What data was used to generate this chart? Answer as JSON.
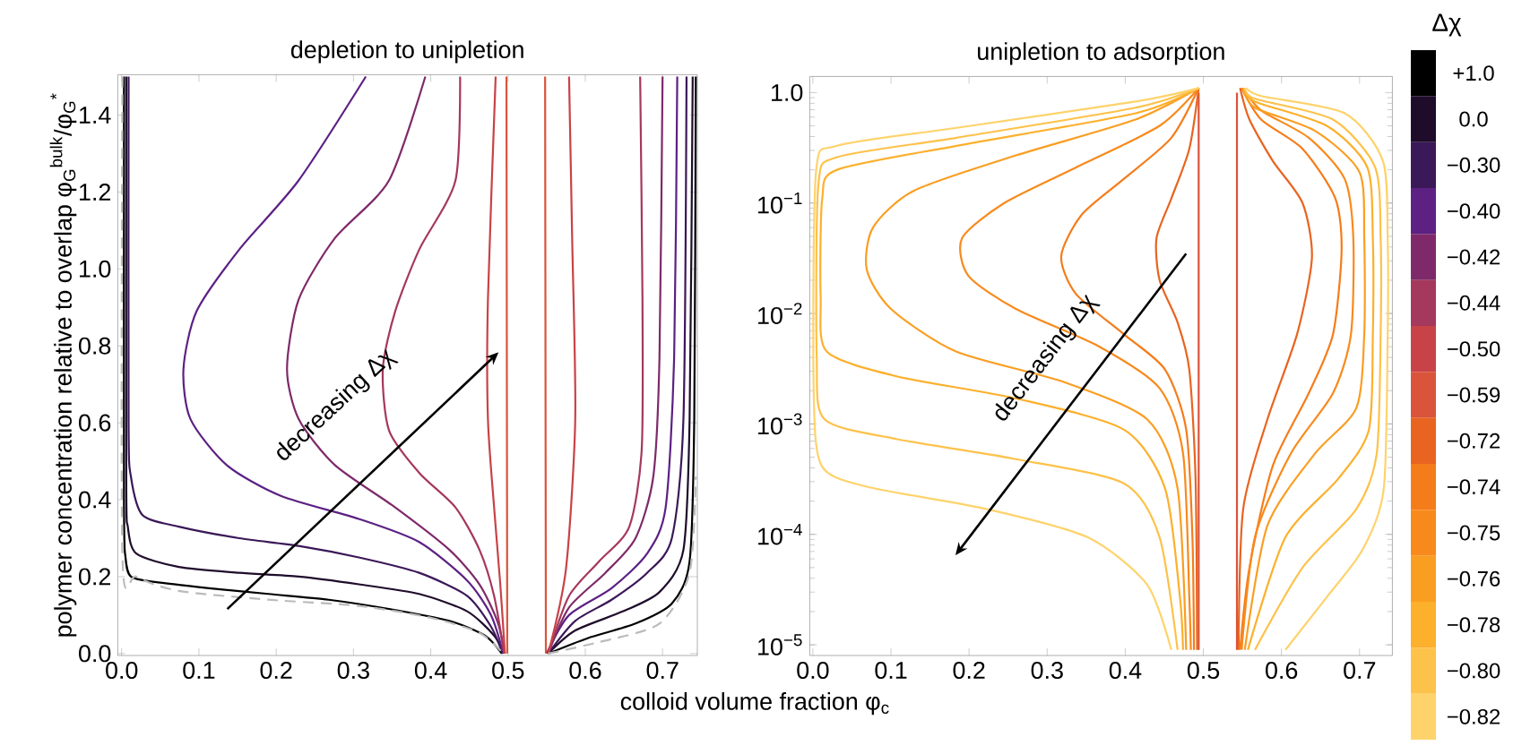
{
  "chart_data": [
    {
      "type": "line",
      "title": "depletion to unipletion",
      "xlabel": "colloid volume fraction φ$_{c}$",
      "ylabel": "polymer concentration relative to overlap φ$_{G}$$^{bulk}$/φ$_{G}$$^{*}$",
      "xlim": [
        -0.005,
        0.745
      ],
      "ylim": [
        -0.005,
        1.505
      ],
      "xticks": [
        {
          "value": 0,
          "label": "0.0"
        },
        {
          "value": 0.1,
          "label": "0.1"
        },
        {
          "value": 0.2,
          "label": "0.2"
        },
        {
          "value": 0.3,
          "label": "0.3"
        },
        {
          "value": 0.4,
          "label": "0.4"
        },
        {
          "value": 0.5,
          "label": "0.5"
        },
        {
          "value": 0.6,
          "label": "0.6"
        },
        {
          "value": 0.7,
          "label": "0.7"
        }
      ],
      "yticks": [
        {
          "value": 0,
          "label": "0.0"
        },
        {
          "value": 0.2,
          "label": "0.2"
        },
        {
          "value": 0.4,
          "label": "0.4"
        },
        {
          "value": 0.6,
          "label": "0.6"
        },
        {
          "value": 0.8,
          "label": "0.8"
        },
        {
          "value": 1,
          "label": "1.0"
        },
        {
          "value": 1.2,
          "label": "1.2"
        },
        {
          "value": 1.4,
          "label": "1.4"
        }
      ],
      "legend": "right",
      "annotations": [
        "decreasing Δχ"
      ],
      "series": [
        {
          "name": "+1.0",
          "color": "#000000",
          "x": [
            0.003,
            0.003,
            0.005,
            0.012,
            0.043,
            0.113,
            0.19,
            0.268,
            0.346,
            0.424,
            0.47,
            0.492,
            null,
            0.552,
            0.603,
            0.665,
            0.712,
            0.735,
            0.741,
            0.743
          ],
          "values": [
            1.5,
            0.4,
            0.25,
            0.2,
            0.186,
            0.17,
            0.155,
            0.14,
            0.116,
            0.085,
            0.047,
            0,
            null,
            0,
            0.04,
            0.078,
            0.13,
            0.24,
            0.61,
            1.5
          ]
        },
        {
          "name": "0.0",
          "color": "#1f0c2a",
          "x": [
            0.006,
            0.006,
            0.008,
            0.019,
            0.074,
            0.152,
            0.229,
            0.307,
            0.385,
            0.447,
            0.482,
            0.494,
            null,
            0.552,
            0.587,
            0.649,
            0.696,
            0.727,
            0.735,
            0.739
          ],
          "values": [
            1.5,
            0.45,
            0.33,
            0.26,
            0.225,
            0.21,
            0.2,
            0.18,
            0.155,
            0.11,
            0.047,
            0,
            null,
            0,
            0.06,
            0.11,
            0.16,
            0.27,
            0.61,
            1.5
          ]
        },
        {
          "name": "−0.30",
          "color": "#3b1858",
          "x": [
            0.009,
            0.009,
            0.012,
            0.027,
            0.074,
            0.152,
            0.229,
            0.307,
            0.385,
            0.447,
            0.478,
            0.493,
            null,
            0.552,
            0.587,
            0.634,
            0.68,
            0.712,
            0.727,
            0.731
          ],
          "values": [
            1.5,
            0.6,
            0.46,
            0.36,
            0.33,
            0.3,
            0.28,
            0.25,
            0.21,
            0.15,
            0.07,
            0,
            null,
            0,
            0.085,
            0.14,
            0.21,
            0.3,
            0.61,
            1.5
          ]
        },
        {
          "name": "−0.40",
          "color": "#5c2183",
          "x": [
            0.316,
            0.229,
            0.152,
            0.097,
            0.08,
            0.089,
            0.136,
            0.206,
            0.307,
            0.385,
            0.447,
            0.478,
            0.494,
            null,
            0.55,
            0.579,
            0.634,
            0.68,
            0.704,
            0.715,
            0.719
          ],
          "values": [
            1.5,
            1.23,
            1.05,
            0.89,
            0.74,
            0.61,
            0.49,
            0.41,
            0.35,
            0.29,
            0.19,
            0.1,
            0,
            null,
            0,
            0.1,
            0.17,
            0.26,
            0.38,
            0.77,
            1.5
          ]
        },
        {
          "name": "−0.42",
          "color": "#7e2a6a",
          "x": [
            0.393,
            0.346,
            0.276,
            0.229,
            0.214,
            0.229,
            0.276,
            0.354,
            0.424,
            0.463,
            0.486,
            0.496,
            null,
            0.552,
            0.579,
            0.626,
            0.665,
            0.688,
            0.696,
            0.7
          ],
          "values": [
            1.5,
            1.23,
            1.08,
            0.92,
            0.74,
            0.61,
            0.49,
            0.38,
            0.27,
            0.18,
            0.085,
            0,
            null,
            0,
            0.12,
            0.21,
            0.3,
            0.46,
            0.77,
            1.5
          ]
        },
        {
          "name": "−0.44",
          "color": "#a5385d",
          "x": [
            0.438,
            0.432,
            0.385,
            0.354,
            0.338,
            0.346,
            0.385,
            0.432,
            0.463,
            0.482,
            0.495,
            null,
            0.552,
            0.579,
            0.618,
            0.657,
            0.673,
            0.674,
            0.671
          ],
          "values": [
            1.5,
            1.23,
            1.05,
            0.89,
            0.74,
            0.58,
            0.47,
            0.38,
            0.27,
            0.15,
            0,
            null,
            0,
            0.15,
            0.24,
            0.33,
            0.53,
            0.92,
            1.5
          ]
        },
        {
          "name": "−0.50",
          "color": "#c84347",
          "x": [
            0.484,
            0.474,
            0.474,
            0.482,
            0.49,
            0.496,
            null,
            0.552,
            0.575,
            0.587,
            0.583,
            0.579
          ],
          "values": [
            1.5,
            0.92,
            0.61,
            0.38,
            0.18,
            0,
            null,
            0,
            0.22,
            0.61,
            1.08,
            1.5
          ]
        },
        {
          "name": "−0.59",
          "color": "#d9543a",
          "x": [
            0.498,
            0.499,
            null,
            0.549,
            0.548
          ],
          "values": [
            1.5,
            0,
            null,
            0,
            1.5
          ]
        },
        {
          "color": "#bbbbbb",
          "line_style": "dashed",
          "x": [
            0.001,
            0.001,
            0.019,
            0.074,
            0.19,
            0.307,
            0.4,
            0.463,
            0.494,
            null,
            0.552,
            0.618,
            0.696,
            0.735,
            0.743
          ],
          "values": [
            1.5,
            0.256,
            0.2,
            0.163,
            0.14,
            0.124,
            0.093,
            0.054,
            0,
            null,
            0,
            0.03,
            0.078,
            0.21,
            0.46
          ]
        }
      ]
    },
    {
      "type": "line",
      "title": "unipletion to adsorption",
      "log": "y",
      "xlim": [
        -0.004,
        0.742
      ],
      "ylim": [
        8e-06,
        1.4
      ],
      "xticks": [
        {
          "value": 0,
          "label": "0.0"
        },
        {
          "value": 0.1,
          "label": "0.1"
        },
        {
          "value": 0.2,
          "label": "0.2"
        },
        {
          "value": 0.3,
          "label": "0.3"
        },
        {
          "value": 0.4,
          "label": "0.4"
        },
        {
          "value": 0.5,
          "label": "0.5"
        },
        {
          "value": 0.6,
          "label": "0.6"
        },
        {
          "value": 0.7,
          "label": "0.7"
        }
      ],
      "yticks": [
        {
          "value": 1e-05,
          "label": "10$^{−5}$"
        },
        {
          "value": 0.0001,
          "label": "10$^{−4}$"
        },
        {
          "value": 0.001,
          "label": "10$^{−3}$"
        },
        {
          "value": 0.01,
          "label": "10$^{−2}$"
        },
        {
          "value": 0.1,
          "label": "10$^{−1}$"
        },
        {
          "value": 1,
          "label": "1.0"
        }
      ],
      "legend": "right",
      "legend_title": "Δχ",
      "annotations": [
        "decreasing Δχ"
      ],
      "series": [
        {
          "color": "#d9543a",
          "x": [
            0.494,
            0.494,
            null,
            0.543,
            0.543
          ],
          "values": [
            1.0,
            9e-06,
            null,
            9e-06,
            1.0
          ]
        },
        {
          "name": "−0.72",
          "color": "#e86420",
          "x": [
            0.494,
            0.482,
            0.459,
            0.44,
            0.444,
            0.467,
            0.482,
            0.49,
            0.492,
            null,
            0.545,
            0.551,
            0.582,
            0.62,
            0.639,
            0.627,
            0.589,
            0.559,
            0.547
          ],
          "values": [
            1.1,
            0.31,
            0.11,
            0.048,
            0.02,
            0.0083,
            0.0031,
            0.00032,
            9e-06,
            null,
            9e-06,
            0.00017,
            0.0011,
            0.0065,
            0.032,
            0.1,
            0.24,
            0.57,
            1.1
          ]
        },
        {
          "name": "−0.74",
          "color": "#f57c1a",
          "x": [
            0.494,
            0.459,
            0.398,
            0.344,
            0.318,
            0.337,
            0.398,
            0.451,
            0.478,
            0.486,
            0.488,
            null,
            0.547,
            0.559,
            0.589,
            0.635,
            0.666,
            0.677,
            0.669,
            0.627,
            0.574,
            0.549
          ],
          "values": [
            1.1,
            0.39,
            0.165,
            0.078,
            0.033,
            0.015,
            0.0065,
            0.0031,
            0.00089,
            9.4e-05,
            9e-06,
            null,
            9e-06,
            5e-05,
            0.00042,
            0.0019,
            0.0065,
            0.037,
            0.11,
            0.31,
            0.57,
            1.1
          ]
        },
        {
          "name": "−0.75",
          "color": "#f88a1c",
          "x": [
            0.494,
            0.444,
            0.337,
            0.245,
            0.191,
            0.199,
            0.26,
            0.367,
            0.444,
            0.474,
            0.482,
            0.484,
            null,
            0.549,
            0.566,
            0.612,
            0.666,
            0.689,
            0.692,
            0.681,
            0.635,
            0.574,
            0.551
          ],
          "values": [
            1.1,
            0.5,
            0.21,
            0.1,
            0.048,
            0.022,
            0.011,
            0.005,
            0.0021,
            0.00054,
            2.7e-05,
            9e-06,
            null,
            9e-06,
            9.4e-05,
            0.00054,
            0.0019,
            0.0065,
            0.048,
            0.165,
            0.39,
            0.69,
            1.1
          ]
        },
        {
          "name": "−0.76",
          "color": "#fa9e22",
          "x": [
            0.494,
            0.413,
            0.26,
            0.13,
            0.077,
            0.069,
            0.1,
            0.184,
            0.321,
            0.428,
            0.467,
            0.478,
            null,
            0.553,
            0.582,
            0.643,
            0.696,
            0.706,
            0.706,
            0.7,
            0.643,
            0.566,
            0.551
          ],
          "values": [
            1.1,
            0.57,
            0.27,
            0.13,
            0.06,
            0.025,
            0.011,
            0.0045,
            0.0024,
            0.0011,
            0.00026,
            9e-06,
            null,
            9e-06,
            0.00012,
            0.00054,
            0.0014,
            0.0065,
            0.048,
            0.19,
            0.45,
            0.73,
            1.1
          ]
        },
        {
          "name": "−0.78",
          "color": "#fcb02c",
          "x": [
            0.494,
            0.413,
            0.184,
            0.031,
            0.012,
            0.01,
            0.018,
            0.107,
            0.26,
            0.398,
            0.451,
            0.47,
            0.474,
            null,
            0.557,
            0.605,
            0.673,
            0.712,
            0.717,
            0.717,
            0.71,
            0.658,
            0.566,
            0.552
          ],
          "values": [
            1.1,
            0.65,
            0.33,
            0.2,
            0.11,
            0.014,
            0.0045,
            0.0027,
            0.0017,
            0.00089,
            0.00026,
            2.7e-05,
            9e-06,
            null,
            9e-06,
            9.4e-05,
            0.00032,
            0.00089,
            0.0065,
            0.048,
            0.21,
            0.5,
            0.83,
            1.1
          ]
        },
        {
          "name": "−0.80",
          "color": "#fdc24a",
          "x": [
            0.494,
            0.413,
            0.184,
            0.031,
            0.007,
            0.005,
            0.015,
            0.107,
            0.26,
            0.398,
            0.444,
            0.467,
            null,
            0.566,
            0.627,
            0.696,
            0.722,
            0.727,
            0.727,
            0.72,
            0.666,
            0.566,
            0.553
          ],
          "values": [
            1.1,
            0.73,
            0.39,
            0.26,
            0.145,
            0.0039,
            0.0011,
            0.00073,
            0.00048,
            0.00029,
            9.4e-05,
            9e-06,
            null,
            9e-06,
            5e-05,
            0.00017,
            0.00054,
            0.0065,
            0.048,
            0.21,
            0.57,
            0.88,
            1.1
          ]
        },
        {
          "name": "−0.82",
          "color": "#fed36c",
          "x": [
            0.494,
            0.413,
            0.184,
            0.031,
            0.004,
            0.001,
            0.011,
            0.069,
            0.222,
            0.352,
            0.428,
            0.459,
            null,
            0.605,
            0.658,
            0.704,
            0.731,
            0.736,
            0.736,
            0.73,
            0.681,
            0.574,
            0.555
          ],
          "values": [
            1.1,
            0.83,
            0.48,
            0.33,
            0.19,
            0.0021,
            0.00042,
            0.00027,
            0.00017,
            9.4e-05,
            3.5e-05,
            9e-06,
            null,
            9e-06,
            2.7e-05,
            7.3e-05,
            0.00026,
            0.0065,
            0.048,
            0.24,
            0.65,
            0.93,
            1.1
          ]
        }
      ]
    }
  ]
}
